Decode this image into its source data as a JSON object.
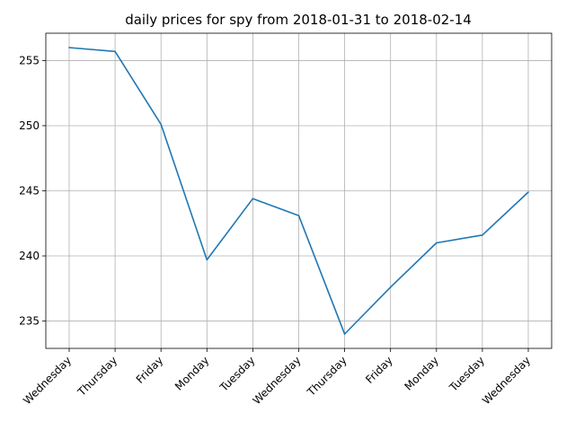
{
  "chart_data": {
    "type": "line",
    "title": "daily prices for spy from 2018-01-31 to 2018-02-14",
    "xlabel": "",
    "ylabel": "",
    "categories": [
      "Wednesday",
      "Thursday",
      "Friday",
      "Monday",
      "Tuesday",
      "Wednesday",
      "Thursday",
      "Friday",
      "Monday",
      "Tuesday",
      "Wednesday"
    ],
    "series": [
      {
        "color": "#1f77b4",
        "values": [
          256.0,
          255.7,
          250.1,
          239.7,
          244.4,
          243.1,
          234.0,
          237.6,
          241.0,
          241.6,
          244.9
        ]
      }
    ],
    "ylim": [
      232.9,
      257.1
    ],
    "yticks": [
      235,
      240,
      245,
      250,
      255
    ],
    "grid": true,
    "legend": "none"
  }
}
